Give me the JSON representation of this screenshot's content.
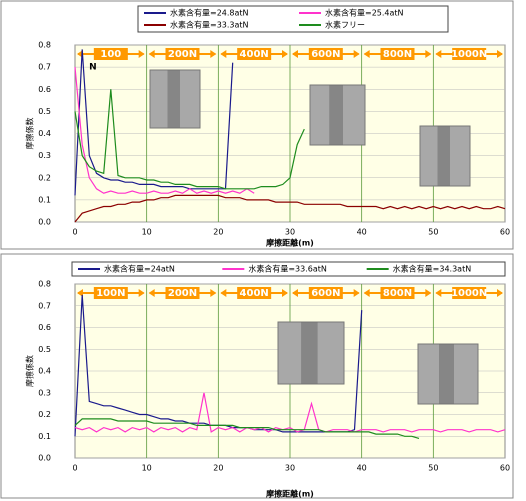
{
  "chart_data": [
    {
      "type": "line",
      "legend": [
        "水素含有量=24.8atN",
        "水素含有量=25.4atN",
        "水素含有量=33.3atN",
        "水素フリー"
      ],
      "ylabel": "摩擦係数",
      "xlabel": "摩擦距離(m)",
      "load_stages": [
        "100",
        "200N",
        "400N",
        "600N",
        "800N",
        "1000N"
      ],
      "annotation": "N",
      "xlim": [
        0,
        60
      ],
      "ylim": [
        0,
        0.8
      ],
      "xticks": [
        0,
        10,
        20,
        30,
        40,
        50,
        60
      ],
      "yticks": [
        {
          "value": 0,
          "label": "0.0"
        },
        0.1,
        0.2,
        0.3,
        0.4,
        0.5,
        0.6,
        0.7,
        0.8
      ],
      "grid": true,
      "x": [
        0,
        1,
        2,
        3,
        4,
        5,
        6,
        7,
        8,
        9,
        10,
        11,
        12,
        13,
        14,
        15,
        16,
        17,
        18,
        19,
        20,
        21,
        22,
        23,
        24,
        25,
        26,
        27,
        28,
        29,
        30,
        31,
        32,
        33,
        34,
        35,
        36,
        37,
        38,
        39,
        40,
        41,
        42,
        43,
        44,
        45,
        46,
        47,
        48,
        49,
        50,
        51,
        52,
        53,
        54,
        55,
        56,
        57,
        58,
        59,
        60
      ],
      "series": [
        {
          "name": "水素含有量=24.8atN",
          "color": "#1a1a8c",
          "values": [
            0.12,
            0.78,
            0.3,
            0.22,
            0.2,
            0.19,
            0.19,
            0.18,
            0.18,
            0.17,
            0.17,
            0.17,
            0.16,
            0.16,
            0.16,
            0.16,
            0.15,
            0.15,
            0.15,
            0.15,
            0.15,
            0.15,
            0.72,
            null,
            null,
            null,
            null,
            null,
            null,
            null,
            null,
            null,
            null,
            null,
            null,
            null,
            null,
            null,
            null,
            null,
            null,
            null,
            null,
            null,
            null,
            null,
            null,
            null,
            null,
            null,
            null,
            null,
            null,
            null,
            null,
            null,
            null,
            null,
            null,
            null,
            null
          ]
        },
        {
          "name": "水素含有量=25.4atN",
          "color": "#ff33cc",
          "values": [
            0.7,
            0.35,
            0.2,
            0.15,
            0.13,
            0.14,
            0.13,
            0.13,
            0.14,
            0.13,
            0.13,
            0.14,
            0.13,
            0.13,
            0.14,
            0.13,
            0.15,
            0.13,
            0.14,
            0.13,
            0.14,
            0.13,
            0.14,
            0.13,
            0.15,
            0.13,
            null,
            null,
            null,
            null,
            null,
            null,
            null,
            null,
            null,
            null,
            null,
            null,
            null,
            null,
            null,
            null,
            null,
            null,
            null,
            null,
            null,
            null,
            null,
            null,
            null,
            null,
            null,
            null,
            null,
            null,
            null,
            null,
            null,
            null,
            null
          ]
        },
        {
          "name": "水素含有量=33.3atN",
          "color": "#8b0000",
          "values": [
            0.0,
            0.04,
            0.05,
            0.06,
            0.07,
            0.07,
            0.08,
            0.08,
            0.09,
            0.09,
            0.1,
            0.1,
            0.11,
            0.11,
            0.12,
            0.12,
            0.12,
            0.12,
            0.12,
            0.12,
            0.12,
            0.11,
            0.11,
            0.11,
            0.1,
            0.1,
            0.1,
            0.1,
            0.09,
            0.09,
            0.09,
            0.09,
            0.08,
            0.08,
            0.08,
            0.08,
            0.08,
            0.08,
            0.07,
            0.07,
            0.07,
            0.07,
            0.07,
            0.06,
            0.07,
            0.06,
            0.07,
            0.06,
            0.07,
            0.06,
            0.07,
            0.06,
            0.07,
            0.06,
            0.07,
            0.06,
            0.07,
            0.06,
            0.06,
            0.07,
            0.06
          ]
        },
        {
          "name": "水素フリー",
          "color": "#1e8c1e",
          "values": [
            0.5,
            0.3,
            0.25,
            0.23,
            0.22,
            0.6,
            0.21,
            0.2,
            0.2,
            0.2,
            0.19,
            0.19,
            0.18,
            0.18,
            0.17,
            0.17,
            0.17,
            0.16,
            0.16,
            0.16,
            0.16,
            0.15,
            0.15,
            0.15,
            0.15,
            0.15,
            0.16,
            0.16,
            0.16,
            0.17,
            0.2,
            0.35,
            0.42,
            null,
            null,
            null,
            null,
            null,
            null,
            null,
            null,
            null,
            null,
            null,
            null,
            null,
            null,
            null,
            null,
            null,
            null,
            null,
            null,
            null,
            null,
            null,
            null,
            null,
            null,
            null,
            null
          ]
        }
      ]
    },
    {
      "type": "line",
      "legend": [
        "水素含有量=24atN",
        "水素含有量=33.6atN",
        "水素含有量=34.3atN"
      ],
      "ylabel": "摩擦係数",
      "xlabel": "摩擦距離(m)",
      "load_stages": [
        "100N",
        "200N",
        "400N",
        "600N",
        "800N",
        "1000N"
      ],
      "xlim": [
        0,
        60
      ],
      "ylim": [
        0,
        0.8
      ],
      "xticks": [
        0,
        10,
        20,
        30,
        40,
        50,
        60
      ],
      "yticks": [
        {
          "value": 0,
          "label": "0.0"
        },
        0.1,
        0.2,
        0.3,
        0.4,
        0.5,
        0.6,
        0.7,
        0.8
      ],
      "grid": true,
      "x": [
        0,
        1,
        2,
        3,
        4,
        5,
        6,
        7,
        8,
        9,
        10,
        11,
        12,
        13,
        14,
        15,
        16,
        17,
        18,
        19,
        20,
        21,
        22,
        23,
        24,
        25,
        26,
        27,
        28,
        29,
        30,
        31,
        32,
        33,
        34,
        35,
        36,
        37,
        38,
        39,
        40,
        41,
        42,
        43,
        44,
        45,
        46,
        47,
        48,
        49,
        50,
        51,
        52,
        53,
        54,
        55,
        56,
        57,
        58,
        59,
        60
      ],
      "series": [
        {
          "name": "水素含有量=24atN",
          "color": "#1a1a8c",
          "values": [
            0.1,
            0.75,
            0.26,
            0.25,
            0.24,
            0.24,
            0.23,
            0.22,
            0.21,
            0.2,
            0.2,
            0.19,
            0.18,
            0.18,
            0.17,
            0.17,
            0.16,
            0.16,
            0.16,
            0.15,
            0.15,
            0.15,
            0.14,
            0.14,
            0.14,
            0.13,
            0.13,
            0.13,
            0.13,
            0.12,
            0.12,
            0.12,
            0.12,
            0.12,
            0.12,
            0.12,
            0.12,
            0.12,
            0.12,
            0.13,
            0.68,
            null,
            null,
            null,
            null,
            null,
            null,
            null,
            null,
            null,
            null,
            null,
            null,
            null,
            null,
            null,
            null,
            null,
            null,
            null,
            null
          ]
        },
        {
          "name": "水素含有量=33.6atN",
          "color": "#ff33cc",
          "values": [
            0.14,
            0.13,
            0.14,
            0.12,
            0.14,
            0.13,
            0.14,
            0.12,
            0.14,
            0.13,
            0.14,
            0.12,
            0.14,
            0.13,
            0.14,
            0.12,
            0.14,
            0.13,
            0.3,
            0.12,
            0.14,
            0.13,
            0.14,
            0.12,
            0.14,
            0.13,
            0.14,
            0.12,
            0.14,
            0.13,
            0.14,
            0.12,
            0.13,
            0.25,
            0.13,
            0.12,
            0.13,
            0.13,
            0.13,
            0.12,
            0.13,
            0.13,
            0.13,
            0.12,
            0.13,
            0.13,
            0.13,
            0.12,
            0.13,
            0.13,
            0.13,
            0.12,
            0.13,
            0.13,
            0.13,
            0.12,
            0.13,
            0.13,
            0.13,
            0.12,
            0.13
          ]
        },
        {
          "name": "水素含有量=34.3atN",
          "color": "#1e8c1e",
          "values": [
            0.15,
            0.18,
            0.18,
            0.18,
            0.18,
            0.18,
            0.17,
            0.17,
            0.17,
            0.17,
            0.17,
            0.16,
            0.16,
            0.16,
            0.16,
            0.16,
            0.16,
            0.15,
            0.15,
            0.15,
            0.15,
            0.15,
            0.15,
            0.14,
            0.14,
            0.14,
            0.14,
            0.14,
            0.13,
            0.13,
            0.13,
            0.13,
            0.13,
            0.13,
            0.13,
            0.12,
            0.12,
            0.12,
            0.12,
            0.12,
            0.12,
            0.12,
            0.11,
            0.11,
            0.11,
            0.11,
            0.1,
            0.1,
            0.09,
            null,
            null,
            null,
            null,
            null,
            null,
            null,
            null,
            null,
            null,
            null,
            null
          ]
        }
      ]
    }
  ]
}
